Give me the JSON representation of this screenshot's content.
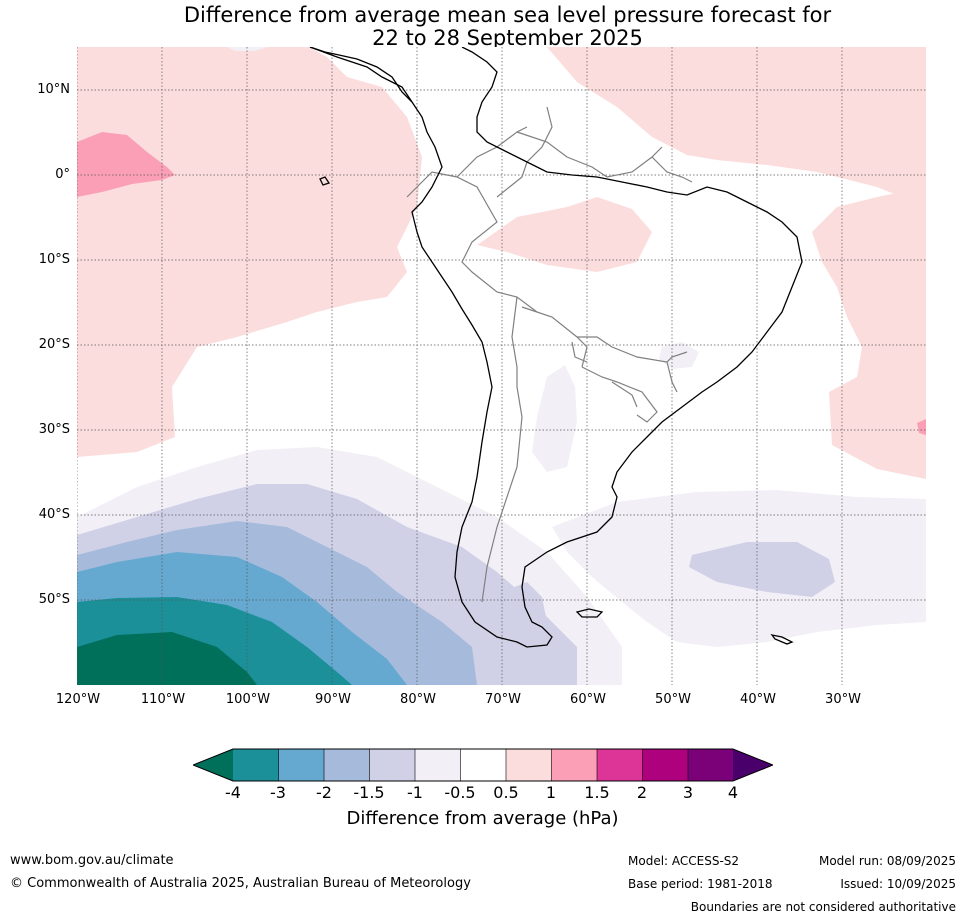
{
  "title": {
    "line1": "Difference from average mean sea level pressure forecast for",
    "line2": "22 to 28 September 2025"
  },
  "map": {
    "lat_labels": [
      "10°N",
      "0°",
      "10°S",
      "20°S",
      "30°S",
      "40°S",
      "50°S"
    ],
    "lon_labels": [
      "120°W",
      "110°W",
      "100°W",
      "90°W",
      "80°W",
      "70°W",
      "60°W",
      "50°W",
      "40°W",
      "30°W"
    ],
    "colors": {
      "c_m4_extend": "#00705a",
      "c_m4_m3": "#1b9099",
      "c_m3_m2": "#65a9d0",
      "c_m2_m15": "#a6bbdb",
      "c_m15_m1": "#d0d1e6",
      "c_m1_m05": "#f2eff6",
      "c_m05_05": "#ffffff",
      "c_05_1": "#fcdddd",
      "c_1_15": "#fa9fb5",
      "c_15_2": "#dd3497",
      "c_2_3": "#ae017e",
      "c_3_4": "#7a0177",
      "c_4_extend": "#49006a",
      "coast": "#000000",
      "borders": "#808080",
      "grid": "#555555"
    }
  },
  "colorbar": {
    "ticks": [
      "-4",
      "-3",
      "-2",
      "-1.5",
      "-1",
      "-0.5",
      "0.5",
      "1",
      "1.5",
      "2",
      "3",
      "4"
    ],
    "label": "Difference from average (hPa)"
  },
  "footer": {
    "website": "www.bom.gov.au/climate",
    "copyright": "© Commonwealth of Australia 2025, Australian Bureau of Meteorology",
    "model": "Model: ACCESS-S2",
    "base_period": "Base period: 1981-2018",
    "model_run": "Model run: 08/09/2025",
    "issued": "Issued: 10/09/2025",
    "disclaimer": "Boundaries are not considered authoritative"
  }
}
